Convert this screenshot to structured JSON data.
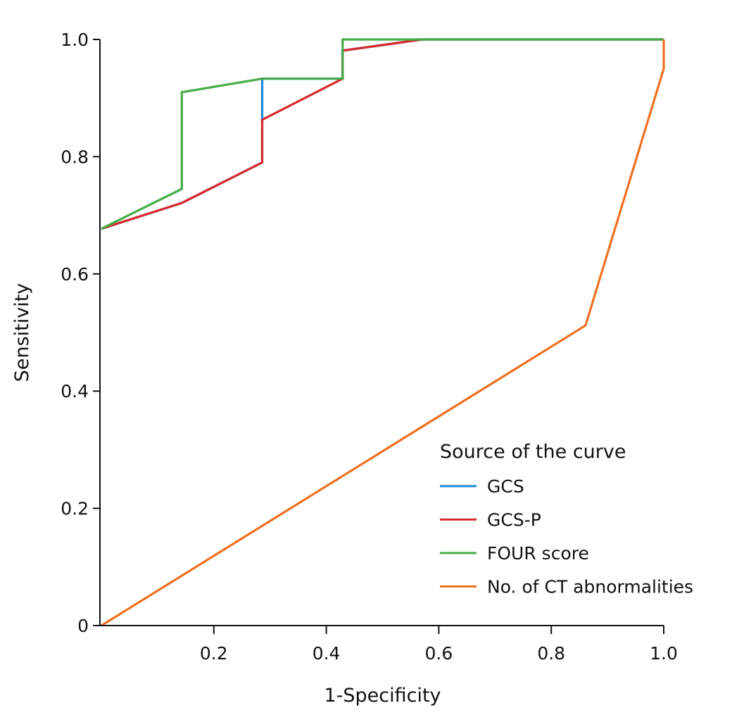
{
  "chart_data": {
    "type": "line",
    "title": "",
    "xlabel": "1-Specificity",
    "ylabel": "Sensitivity",
    "xlim": [
      0,
      1.0
    ],
    "ylim": [
      0,
      1.0
    ],
    "grid": false,
    "x_ticks": [
      {
        "value": 0.2,
        "label": "0.2"
      },
      {
        "value": 0.4,
        "label": "0.4"
      },
      {
        "value": 0.6,
        "label": "0.6"
      },
      {
        "value": 0.8,
        "label": "0.8"
      },
      {
        "value": 1.0,
        "label": "1.0"
      }
    ],
    "y_ticks": [
      {
        "value": 0,
        "label": "0"
      },
      {
        "value": 0.2,
        "label": "0.2"
      },
      {
        "value": 0.4,
        "label": "0.4"
      },
      {
        "value": 0.6,
        "label": "0.6"
      },
      {
        "value": 0.8,
        "label": "0.8"
      },
      {
        "value": 1.0,
        "label": "1.0"
      }
    ],
    "legend": {
      "title": "Source of the curve",
      "position": "bottom-right"
    },
    "series": [
      {
        "name": "GCS",
        "color": "#1a87d8",
        "x": [
          0,
          0.143,
          0.286,
          0.286,
          0.429,
          0.429,
          0.571,
          1.0
        ],
        "y": [
          0.677,
          0.721,
          0.79,
          0.933,
          0.933,
          0.981,
          1.0,
          1.0
        ]
      },
      {
        "name": "GCS-P",
        "color": "#d62a2f",
        "x": [
          0,
          0.143,
          0.286,
          0.286,
          0.429,
          0.429,
          0.571,
          1.0
        ],
        "y": [
          0.677,
          0.721,
          0.79,
          0.863,
          0.933,
          0.981,
          1.0,
          1.0
        ]
      },
      {
        "name": "FOUR score",
        "color": "#45ac45",
        "x": [
          0,
          0.143,
          0.143,
          0.286,
          0.429,
          0.429,
          1.0
        ],
        "y": [
          0.677,
          0.745,
          0.91,
          0.933,
          0.933,
          1.0,
          1.0
        ]
      },
      {
        "name": "No. of CT abnormalities",
        "color": "#f07020",
        "x": [
          0,
          0.861,
          1.0,
          1.0
        ],
        "y": [
          0,
          0.512,
          0.95,
          1.0
        ]
      }
    ]
  }
}
